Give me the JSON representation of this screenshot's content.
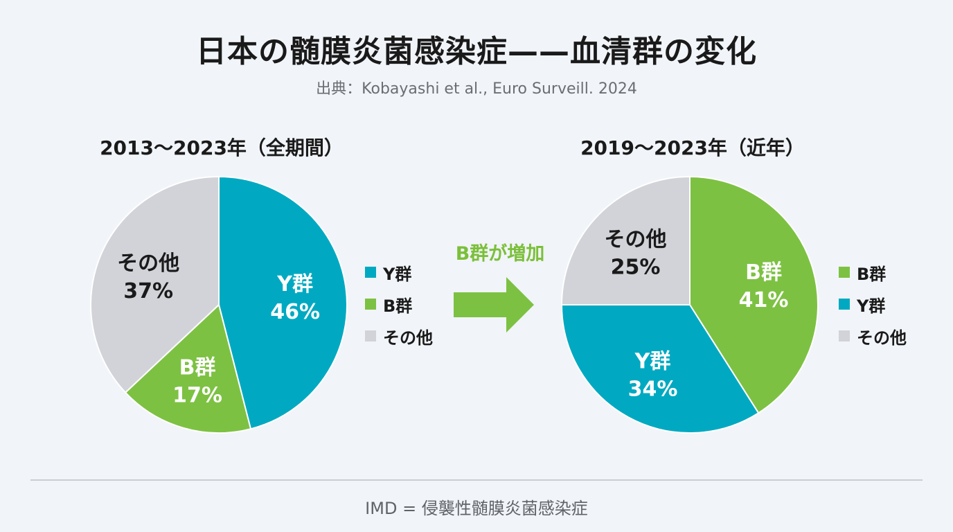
{
  "title": "日本の髄膜炎菌感染症——血清群の変化",
  "subtitle": "出典：Kobayashi et al., Euro Surveill. 2024",
  "callout": "B群が増加",
  "footnote": "IMD = 侵襲性髄膜炎菌感染症",
  "colors": {
    "Y": "#00a9c1",
    "B": "#7dc143",
    "other": "#d1d3d8"
  },
  "chart_data": [
    {
      "type": "pie",
      "title": "2013〜2023年（全期間）",
      "slices": [
        {
          "name": "Y群",
          "label": "Y群",
          "value": 46,
          "display": "46%",
          "color": "#00a9c1",
          "text_color": "#ffffff"
        },
        {
          "name": "B群",
          "label": "B群",
          "value": 17,
          "display": "17%",
          "color": "#7dc143",
          "text_color": "#ffffff"
        },
        {
          "name": "その他",
          "label": "その他",
          "value": 37,
          "display": "37%",
          "color": "#d1d3d8",
          "text_color": "#1a1a1a"
        }
      ],
      "legend": [
        "Y群",
        "B群",
        "その他"
      ],
      "legend_placement": "right"
    },
    {
      "type": "pie",
      "title": "2019〜2023年（近年）",
      "slices": [
        {
          "name": "B群",
          "label": "B群",
          "value": 41,
          "display": "41%",
          "color": "#7dc143",
          "text_color": "#ffffff"
        },
        {
          "name": "Y群",
          "label": "Y群",
          "value": 34,
          "display": "34%",
          "color": "#00a9c1",
          "text_color": "#ffffff"
        },
        {
          "name": "その他",
          "label": "その他",
          "value": 25,
          "display": "25%",
          "color": "#d1d3d8",
          "text_color": "#1a1a1a"
        }
      ],
      "legend": [
        "B群",
        "Y群",
        "その他"
      ],
      "legend_placement": "right"
    }
  ]
}
